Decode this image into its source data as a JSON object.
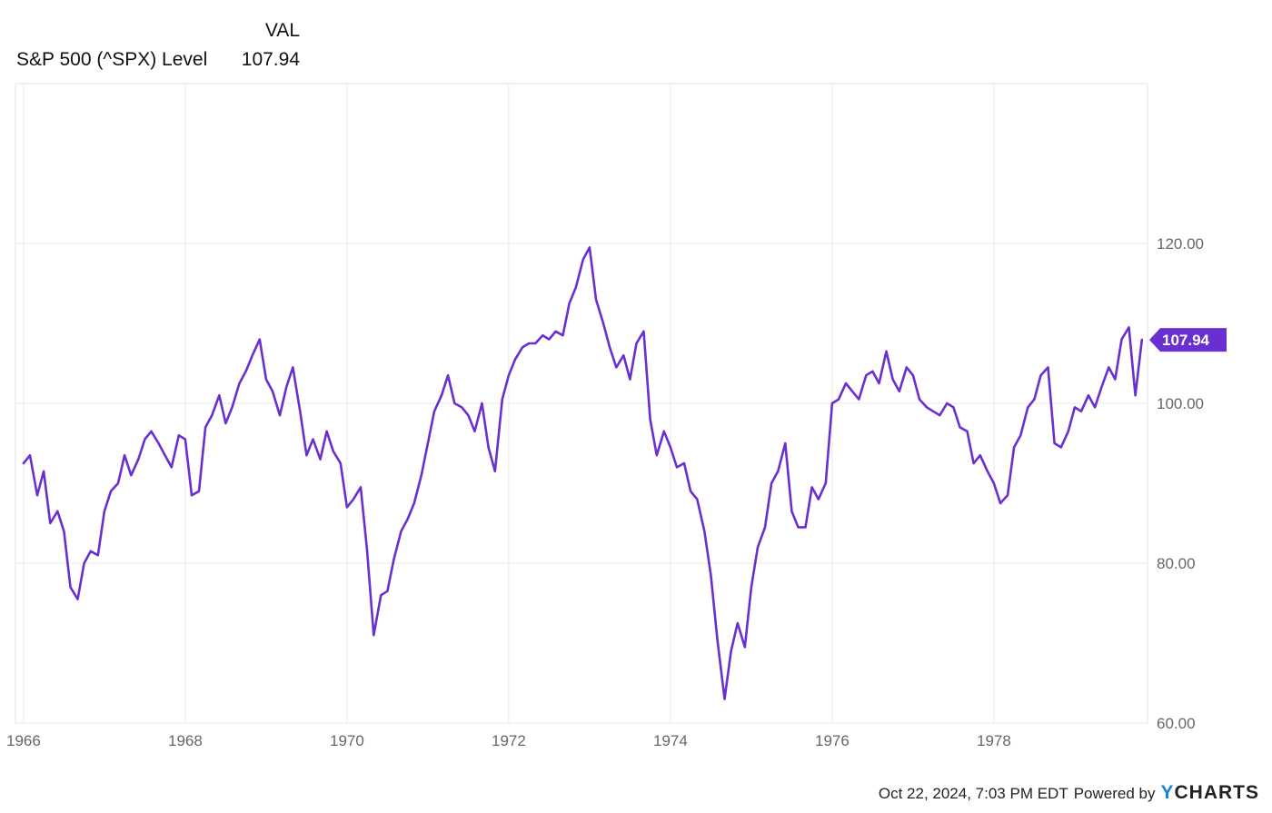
{
  "legend": {
    "header": "VAL",
    "series_name": "S&P 500 (^SPX) Level",
    "series_value": "107.94"
  },
  "footer": {
    "timestamp": "Oct 22, 2024, 7:03 PM EDT",
    "powered_by": "Powered by",
    "brand_y": "Y",
    "brand_rest": "CHARTS"
  },
  "colors": {
    "series": "#6a2fd0",
    "grid": "#e8e8e8",
    "axis_text": "#666666",
    "brand_accent": "#1b83d2"
  },
  "chart_data": {
    "type": "line",
    "title": "",
    "xlabel": "",
    "ylabel": "",
    "ylim": [
      60,
      140
    ],
    "xlim": [
      1965.9,
      1979.9
    ],
    "x_ticks": [
      1966,
      1968,
      1970,
      1972,
      1974,
      1976,
      1978
    ],
    "x_tick_labels": [
      "1966",
      "1968",
      "1970",
      "1972",
      "1974",
      "1976",
      "1978"
    ],
    "y_ticks": [
      60,
      80,
      100,
      120
    ],
    "y_tick_labels": [
      "60.00",
      "80.00",
      "100.00",
      "120.00"
    ],
    "grid": true,
    "last_value_label": "107.94",
    "series": [
      {
        "name": "S&P 500 (^SPX) Level",
        "color": "#6a2fd0",
        "x": [
          1966.0,
          1966.08,
          1966.17,
          1966.25,
          1966.33,
          1966.42,
          1966.5,
          1966.58,
          1966.67,
          1966.75,
          1966.83,
          1966.92,
          1967.0,
          1967.08,
          1967.17,
          1967.25,
          1967.33,
          1967.42,
          1967.5,
          1967.58,
          1967.67,
          1967.75,
          1967.83,
          1967.92,
          1968.0,
          1968.08,
          1968.17,
          1968.25,
          1968.33,
          1968.42,
          1968.5,
          1968.58,
          1968.67,
          1968.75,
          1968.83,
          1968.92,
          1969.0,
          1969.08,
          1969.17,
          1969.25,
          1969.33,
          1969.42,
          1969.5,
          1969.58,
          1969.67,
          1969.75,
          1969.83,
          1969.92,
          1970.0,
          1970.08,
          1970.17,
          1970.25,
          1970.33,
          1970.42,
          1970.5,
          1970.58,
          1970.67,
          1970.75,
          1970.83,
          1970.92,
          1971.0,
          1971.08,
          1971.17,
          1971.25,
          1971.33,
          1971.42,
          1971.5,
          1971.58,
          1971.67,
          1971.75,
          1971.83,
          1971.92,
          1972.0,
          1972.08,
          1972.17,
          1972.25,
          1972.33,
          1972.42,
          1972.5,
          1972.58,
          1972.67,
          1972.75,
          1972.83,
          1972.92,
          1973.0,
          1973.08,
          1973.17,
          1973.25,
          1973.33,
          1973.42,
          1973.5,
          1973.58,
          1973.67,
          1973.75,
          1973.83,
          1973.92,
          1974.0,
          1974.08,
          1974.17,
          1974.25,
          1974.33,
          1974.42,
          1974.5,
          1974.58,
          1974.67,
          1974.75,
          1974.83,
          1974.92,
          1975.0,
          1975.08,
          1975.17,
          1975.25,
          1975.33,
          1975.42,
          1975.5,
          1975.58,
          1975.67,
          1975.75,
          1975.83,
          1975.92,
          1976.0,
          1976.08,
          1976.17,
          1976.25,
          1976.33,
          1976.42,
          1976.5,
          1976.58,
          1976.67,
          1976.75,
          1976.83,
          1976.92,
          1977.0,
          1977.08,
          1977.17,
          1977.25,
          1977.33,
          1977.42,
          1977.5,
          1977.58,
          1977.67,
          1977.75,
          1977.83,
          1977.92,
          1978.0,
          1978.08,
          1978.17,
          1978.25,
          1978.33,
          1978.42,
          1978.5,
          1978.58,
          1978.67,
          1978.75,
          1978.83,
          1978.92,
          1979.0,
          1979.08,
          1979.17,
          1979.25,
          1979.33,
          1979.42,
          1979.5,
          1979.58,
          1979.67,
          1979.75,
          1979.83
        ],
        "values": [
          92.5,
          93.5,
          88.5,
          91.5,
          85.0,
          86.5,
          84.0,
          77.0,
          75.5,
          80.0,
          81.5,
          81.0,
          86.5,
          89.0,
          90.0,
          93.5,
          91.0,
          93.0,
          95.5,
          96.5,
          95.0,
          93.5,
          92.0,
          96.0,
          95.5,
          88.5,
          89.0,
          97.0,
          98.5,
          101.0,
          97.5,
          99.5,
          102.5,
          104.0,
          106.0,
          108.0,
          103.0,
          101.5,
          98.5,
          102.0,
          104.5,
          99.0,
          93.5,
          95.5,
          93.0,
          96.5,
          94.0,
          92.5,
          87.0,
          88.0,
          89.5,
          81.5,
          71.0,
          76.0,
          76.5,
          80.5,
          84.0,
          85.5,
          87.5,
          91.0,
          95.0,
          99.0,
          101.0,
          103.5,
          100.0,
          99.5,
          98.5,
          96.5,
          100.0,
          94.5,
          91.5,
          100.5,
          103.5,
          105.5,
          107.0,
          107.5,
          107.5,
          108.5,
          108.0,
          109.0,
          108.5,
          112.5,
          114.5,
          118.0,
          119.5,
          113.0,
          110.0,
          107.0,
          104.5,
          106.0,
          103.0,
          107.5,
          109.0,
          98.0,
          93.5,
          96.5,
          94.5,
          92.0,
          92.5,
          89.0,
          88.0,
          84.0,
          78.5,
          70.5,
          63.0,
          69.0,
          72.5,
          69.5,
          77.0,
          82.0,
          84.5,
          90.0,
          91.5,
          95.0,
          86.5,
          84.5,
          84.5,
          89.5,
          88.0,
          90.0,
          100.0,
          100.5,
          102.5,
          101.5,
          100.5,
          103.5,
          104.0,
          102.5,
          106.5,
          103.0,
          101.5,
          104.5,
          103.5,
          100.5,
          99.5,
          99.0,
          98.5,
          100.0,
          99.5,
          97.0,
          96.5,
          92.5,
          93.5,
          91.5,
          90.0,
          87.5,
          88.5,
          94.5,
          96.0,
          99.5,
          100.5,
          103.5,
          104.5,
          95.0,
          94.5,
          96.5,
          99.5,
          99.0,
          101.0,
          99.5,
          102.0,
          104.5,
          103.0,
          108.0,
          109.5,
          101.0,
          107.94
        ]
      }
    ]
  }
}
